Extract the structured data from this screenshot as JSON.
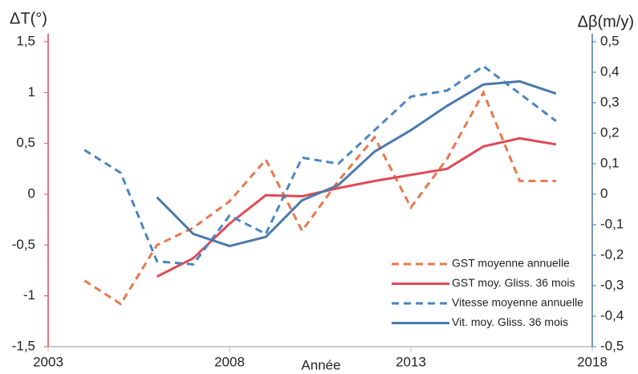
{
  "chart_data": {
    "type": "line",
    "y_label": "ΔT(°)",
    "y2_label": "Δβ(m/y)",
    "x_label": "Année",
    "x": [
      2004,
      2005,
      2006,
      2007,
      2008,
      2009,
      2010,
      2011,
      2012,
      2013,
      2014,
      2015,
      2016,
      2017
    ],
    "xlim": [
      2003,
      2018
    ],
    "xticks": [
      2003,
      2008,
      2013,
      2018
    ],
    "ylim": [
      -1.5,
      1.5
    ],
    "yticks": [
      {
        "value": -1.5,
        "label": "-1,5"
      },
      -1,
      {
        "value": -0.5,
        "label": "-0,5"
      },
      0,
      {
        "value": 0.5,
        "label": "0,5"
      },
      1,
      {
        "value": 1.5,
        "label": "1,5"
      }
    ],
    "y2lim": [
      -0.5,
      0.5
    ],
    "y2ticks": [
      {
        "value": -0.5,
        "label": "-0,5"
      },
      {
        "value": -0.4,
        "label": "-0,4"
      },
      {
        "value": -0.3,
        "label": "-0,3"
      },
      {
        "value": -0.2,
        "label": "-0,2"
      },
      {
        "value": -0.1,
        "label": "-0,1"
      },
      0,
      {
        "value": 0.1,
        "label": "0,1"
      },
      {
        "value": 0.2,
        "label": "0,2"
      },
      {
        "value": 0.3,
        "label": "0,3"
      },
      {
        "value": 0.4,
        "label": "0,4"
      },
      {
        "value": 0.5,
        "label": "0,5"
      }
    ],
    "legend": "lower right",
    "series": [
      {
        "name": "GST moyenne annuelle",
        "color": "#e8784e",
        "dashed": true,
        "values": [
          -0.85,
          -1.08,
          -0.5,
          -0.33,
          -0.07,
          0.34,
          -0.36,
          0.13,
          0.56,
          -0.13,
          0.35,
          1.0,
          0.13,
          0.13
        ]
      },
      {
        "name": "GST moy. Gliss. 36 mois",
        "color": "#e04a55",
        "dashed": false,
        "values": [
          null,
          null,
          -0.81,
          -0.63,
          -0.29,
          -0.01,
          -0.02,
          0.06,
          0.13,
          0.19,
          0.25,
          0.47,
          0.55,
          0.49
        ]
      },
      {
        "name": "Vitesse moyenne annuelle",
        "color": "#4a86c0",
        "dashed": true,
        "axis": "y2",
        "values": [
          0.145,
          0.07,
          -0.22,
          -0.23,
          -0.07,
          -0.13,
          0.12,
          0.1,
          0.21,
          0.32,
          0.34,
          0.42,
          0.33,
          0.24
        ]
      },
      {
        "name": "Vit. moy. Gliss. 36 mois",
        "color": "#4a7aaa",
        "dashed": false,
        "axis": "y2",
        "values": [
          null,
          null,
          -0.01,
          -0.13,
          -0.17,
          -0.14,
          -0.02,
          0.03,
          0.14,
          0.21,
          0.29,
          0.36,
          0.37,
          0.33
        ]
      }
    ]
  }
}
